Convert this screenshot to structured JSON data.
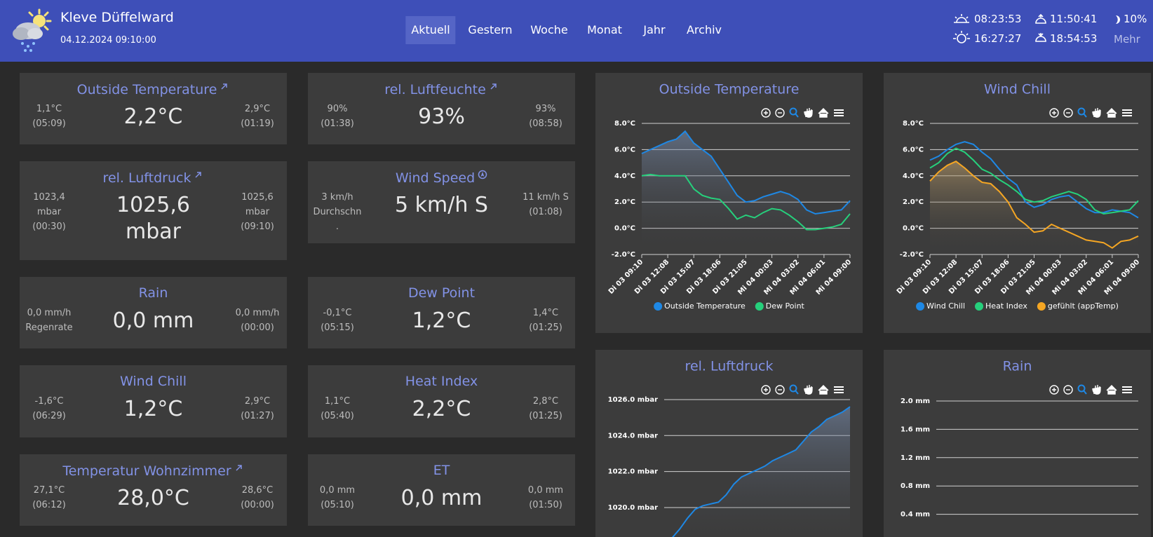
{
  "header": {
    "title": "Kleve Düffelward",
    "datetime": "04.12.2024 09:10:00",
    "sunrise": "08:23:53",
    "sunset": "16:27:27",
    "moonrise": "11:50:41",
    "moonset": "18:54:53",
    "moon": "10%",
    "more": "Mehr"
  },
  "nav": [
    "Aktuell",
    "Gestern",
    "Woche",
    "Monat",
    "Jahr",
    "Archiv"
  ],
  "cards": [
    {
      "title": "Outside Temperature",
      "value": [
        "2,2°C"
      ],
      "left": [
        "1,1°C",
        "(05:09)"
      ],
      "right": [
        "2,9°C",
        "(01:19)"
      ]
    },
    {
      "title": "rel. Luftfeuchte",
      "value": [
        "93%"
      ],
      "left": [
        "90%",
        "(01:38)"
      ],
      "right": [
        "93%",
        "(08:58)"
      ]
    },
    {
      "title": "rel. Luftdruck",
      "value": [
        "1025,6",
        "mbar"
      ],
      "left": [
        "1023,4",
        "mbar",
        "(00:30)"
      ],
      "right": [
        "1025,6",
        "mbar",
        "(09:10)"
      ]
    },
    {
      "title": "Wind Speed",
      "value": [
        "5 km/h S"
      ],
      "left": [
        "3 km/h",
        "Durchschn",
        "."
      ],
      "right": [
        "11 km/h S",
        "(01:08)"
      ]
    },
    {
      "title": "Rain",
      "value": [
        "0,0 mm"
      ],
      "left": [
        "0,0 mm/h",
        "Regenrate"
      ],
      "right": [
        "0,0 mm/h",
        "(00:00)"
      ]
    },
    {
      "title": "Dew Point",
      "value": [
        "1,2°C"
      ],
      "left": [
        "-0,1°C",
        "(05:15)"
      ],
      "right": [
        "1,4°C",
        "(01:25)"
      ]
    },
    {
      "title": "Wind Chill",
      "value": [
        "1,2°C"
      ],
      "left": [
        "-1,6°C",
        "(06:29)"
      ],
      "right": [
        "2,9°C",
        "(01:27)"
      ]
    },
    {
      "title": "Heat Index",
      "value": [
        "2,2°C"
      ],
      "left": [
        "1,1°C",
        "(05:40)"
      ],
      "right": [
        "2,8°C",
        "(01:25)"
      ]
    },
    {
      "title": "Temperatur Wohnzimmer",
      "value": [
        "28,0°C"
      ],
      "left": [
        "27,1°C",
        "(06:12)"
      ],
      "right": [
        "28,6°C",
        "(00:00)"
      ]
    },
    {
      "title": "ET",
      "value": [
        "0,0 mm"
      ],
      "left": [
        "0,0 mm",
        "(05:10)"
      ],
      "right": [
        "0,0 mm",
        "(01:50)"
      ]
    }
  ],
  "chart_data": [
    {
      "type": "line",
      "title": "Outside Temperature",
      "categories": [
        "Di 03 09:10",
        null,
        null,
        "Di 03 12:08",
        null,
        null,
        "Di 03 15:07",
        null,
        null,
        "Di 03 18:06",
        null,
        null,
        "Di 03 21:05",
        null,
        null,
        "Mi 04 00:03",
        null,
        null,
        "Mi 04 03:02",
        null,
        null,
        "Mi 04 06:01",
        null,
        null,
        "Mi 04 09:00"
      ],
      "series": [
        {
          "name": "Outside Temperature",
          "color": "#1e88e5",
          "values": [
            5.7,
            6.0,
            6.3,
            6.6,
            6.8,
            7.4,
            6.5,
            6.0,
            5.5,
            4.5,
            3.5,
            2.5,
            2.0,
            2.1,
            2.4,
            2.6,
            2.8,
            2.6,
            2.2,
            1.4,
            1.1,
            1.2,
            1.3,
            1.4,
            2.1
          ]
        },
        {
          "name": "Dew Point",
          "color": "#26d07c",
          "values": [
            4.0,
            4.1,
            4.0,
            4.0,
            4.0,
            4.0,
            3.0,
            2.5,
            2.3,
            2.2,
            1.5,
            0.7,
            1.0,
            0.8,
            1.2,
            1.5,
            1.4,
            1.0,
            0.5,
            -0.1,
            -0.1,
            0.0,
            0.1,
            0.3,
            1.1
          ]
        }
      ],
      "ylim": [
        -2,
        8
      ],
      "yticks": [
        {
          "value": -2,
          "label": "-2.0°C"
        },
        {
          "value": 0,
          "label": "0.0°C"
        },
        {
          "value": 2,
          "label": "2.0°C"
        },
        {
          "value": 4,
          "label": "4.0°C"
        },
        {
          "value": 6,
          "label": "6.0°C"
        },
        {
          "value": 8,
          "label": "8.0°C"
        }
      ],
      "grid": true,
      "legend": "bottom"
    },
    {
      "type": "line",
      "title": "Wind Chill",
      "categories": [
        "Di 03 09:10",
        null,
        null,
        "Di 03 12:08",
        null,
        null,
        "Di 03 15:07",
        null,
        null,
        "Di 03 18:06",
        null,
        null,
        "Di 03 21:05",
        null,
        null,
        "Mi 04 00:03",
        null,
        null,
        "Mi 04 03:02",
        null,
        null,
        "Mi 04 06:01",
        null,
        null,
        "Mi 04 09:00"
      ],
      "series": [
        {
          "name": "Wind Chill",
          "color": "#1e88e5",
          "values": [
            5.2,
            5.5,
            6.0,
            6.4,
            6.6,
            6.4,
            5.8,
            5.3,
            4.5,
            3.8,
            3.3,
            2.0,
            1.6,
            1.8,
            2.2,
            2.4,
            2.5,
            2.0,
            1.5,
            1.2,
            1.2,
            1.4,
            1.3,
            1.2,
            0.8
          ]
        },
        {
          "name": "Heat Index",
          "color": "#26d07c",
          "values": [
            4.6,
            5.0,
            5.7,
            6.1,
            5.8,
            5.2,
            4.5,
            4.2,
            3.7,
            3.3,
            2.8,
            2.2,
            2.0,
            2.1,
            2.4,
            2.6,
            2.8,
            2.6,
            2.2,
            1.4,
            1.1,
            1.2,
            1.3,
            1.4,
            2.1
          ]
        },
        {
          "name": "gefühlt (appTemp)",
          "color": "#f5a623",
          "values": [
            3.6,
            4.3,
            4.8,
            5.1,
            4.6,
            4.0,
            3.5,
            3.4,
            2.8,
            2.0,
            0.8,
            0.3,
            -0.3,
            -0.2,
            0.3,
            0.0,
            -0.3,
            -0.6,
            -0.9,
            -1.0,
            -1.1,
            -1.5,
            -1.0,
            -0.9,
            -0.6
          ]
        }
      ],
      "ylim": [
        -2,
        8
      ],
      "yticks": [
        {
          "value": -2,
          "label": "-2.0°C"
        },
        {
          "value": 0,
          "label": "0.0°C"
        },
        {
          "value": 2,
          "label": "2.0°C"
        },
        {
          "value": 4,
          "label": "4.0°C"
        },
        {
          "value": 6,
          "label": "6.0°C"
        },
        {
          "value": 8,
          "label": "8.0°C"
        }
      ],
      "grid": true,
      "legend": "bottom"
    },
    {
      "type": "line",
      "title": "rel. Luftdruck",
      "series": [
        {
          "color": "#1e88e5",
          "values": [
            1017.8,
            1018.3,
            1018.8,
            1019.4,
            1019.9,
            1020.1,
            1020.2,
            1020.3,
            1020.7,
            1021.3,
            1021.7,
            1021.9,
            1022.1,
            1022.3,
            1022.6,
            1022.8,
            1023.0,
            1023.2,
            1023.7,
            1024.2,
            1024.5,
            1024.9,
            1025.1,
            1025.3,
            1025.6
          ]
        }
      ],
      "ylim": [
        1018,
        1026.4
      ],
      "yticks": [
        {
          "value": 1020,
          "label": "1020.0 mbar"
        },
        {
          "value": 1022,
          "label": "1022.0 mbar"
        },
        {
          "value": 1024,
          "label": "1024.0 mbar"
        },
        {
          "value": 1026,
          "label": "1026.0 mbar"
        }
      ],
      "grid": true
    },
    {
      "type": "line",
      "title": "Rain",
      "ylim": [
        0,
        2.1
      ],
      "yticks": [
        {
          "value": 0.4,
          "label": "0.4 mm"
        },
        {
          "value": 0.8,
          "label": "0.8 mm"
        },
        {
          "value": 1.2,
          "label": "1.2 mm"
        },
        {
          "value": 1.6,
          "label": "1.6 mm"
        },
        {
          "value": 2,
          "label": "2.0 mm"
        }
      ],
      "grid": true
    }
  ]
}
